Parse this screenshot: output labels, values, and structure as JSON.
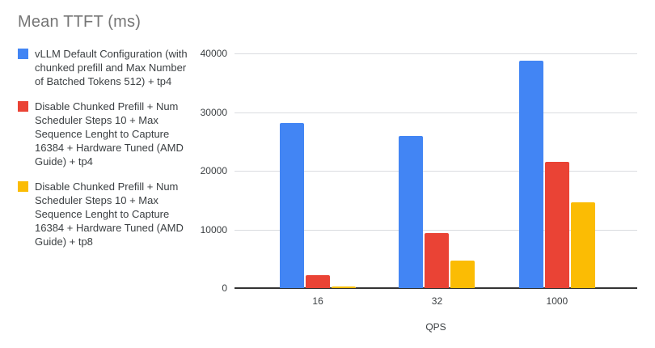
{
  "title": "Mean TTFT (ms)",
  "chart_data": {
    "type": "bar",
    "title": "Mean TTFT (ms)",
    "categories": [
      "16",
      "32",
      "1000"
    ],
    "series": [
      {
        "name": "vLLM Default Configuration (with chunked prefill and Max Number of Batched Tokens 512) + tp4",
        "color": "#4285F4",
        "values": [
          28200,
          25900,
          38800
        ]
      },
      {
        "name": "Disable Chunked Prefill + Num Scheduler Steps 10 + Max Sequence Lenght to Capture 16384 + Hardware Tuned (AMD Guide) + tp4",
        "color": "#EA4335",
        "values": [
          2200,
          9350,
          21500
        ]
      },
      {
        "name": "Disable Chunked Prefill + Num Scheduler Steps 10 + Max Sequence Lenght to Capture 16384 + Hardware Tuned (AMD Guide) + tp8",
        "color": "#FBBC04",
        "values": [
          250,
          4650,
          14600
        ]
      }
    ],
    "xlabel": "QPS",
    "ylabel": "",
    "ylim": [
      0,
      40000
    ],
    "yticks": [
      0,
      10000,
      20000,
      30000,
      40000
    ],
    "grid": true,
    "legend_position": "left"
  },
  "styles": {
    "series_blue": "#4285F4",
    "series_red": "#EA4335",
    "series_yellow": "#FBBC04",
    "title_color": "#757575",
    "legend_text_color": "#3c4043",
    "axis_label_color": "#3c4043",
    "gridline_color": "#dadce0",
    "baseline_color": "#333333"
  }
}
